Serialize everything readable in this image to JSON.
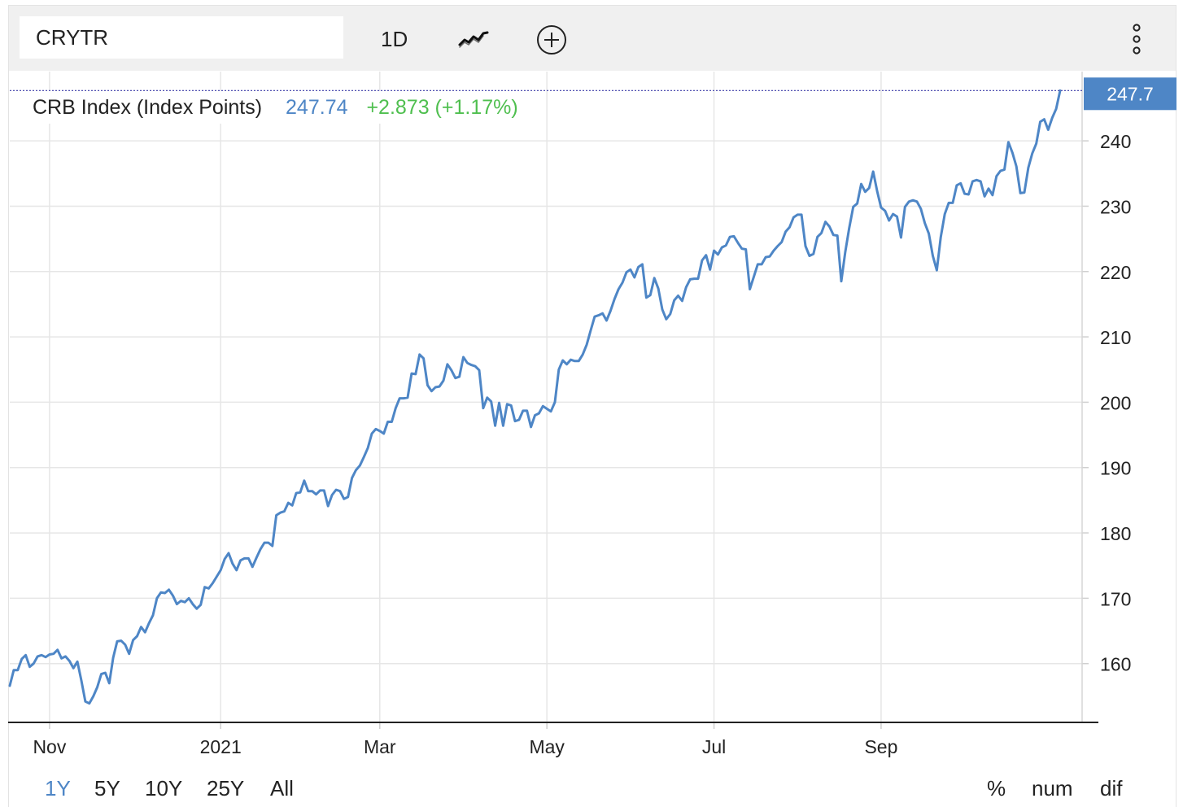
{
  "toolbar": {
    "symbol": "CRYTR",
    "interval_label": "1D",
    "chart_type_icon": "line-chart-icon",
    "add_icon": "plus-circle-icon",
    "more_icon": "vertical-ellipsis-icon"
  },
  "legend": {
    "name": "CRB Index (Index Points)",
    "last": "247.74",
    "change": "+2.873 (+1.17%)"
  },
  "last_price_label": "247.7",
  "colors": {
    "line": "#4e86c6",
    "positive": "#4fbf4f",
    "price_tag": "#4e86c6",
    "toolbar_bg": "#f0f0f0",
    "grid": "#e6e6e6"
  },
  "ranges": [
    "1Y",
    "5Y",
    "10Y",
    "25Y",
    "All"
  ],
  "active_range": "1Y",
  "modes": [
    "%",
    "num",
    "dif"
  ],
  "chart_data": {
    "type": "line",
    "title": "",
    "xlabel": "",
    "ylabel": "",
    "x_unit": "trading day index (0 = first session shown, ~late Oct 2020)",
    "ylim": [
      151,
      250.6
    ],
    "yticks": [
      160,
      170,
      180,
      190,
      200,
      210,
      220,
      230,
      240
    ],
    "xtick_labels": [
      {
        "label": "Nov",
        "x": 10
      },
      {
        "label": "2021",
        "x": 53
      },
      {
        "label": "Mar",
        "x": 93
      },
      {
        "label": "May",
        "x": 135
      },
      {
        "label": "Jul",
        "x": 177
      },
      {
        "label": "Sep",
        "x": 219
      }
    ],
    "grid": true,
    "legend_position": "top-left",
    "series": [
      {
        "name": "CRB Index (Index Points)",
        "values": [
          156.6,
          159,
          159,
          160.7,
          161.3,
          159.5,
          160,
          161.1,
          161.3,
          161,
          161.4,
          161.5,
          162.1,
          160.8,
          161.1,
          160.4,
          159.3,
          160.3,
          157.4,
          154.2,
          153.9,
          155,
          156.4,
          158.4,
          158.6,
          157,
          160.9,
          163.4,
          163.5,
          162.9,
          161.5,
          163.6,
          164.2,
          165.6,
          164.8,
          166.2,
          167.4,
          170,
          170.9,
          170.8,
          171.3,
          170.4,
          169.1,
          169.6,
          169.4,
          170,
          169.1,
          168.4,
          169,
          171.7,
          171.5,
          172.3,
          173.3,
          174.3,
          176,
          176.9,
          175.3,
          174.3,
          175.8,
          176.1,
          176.1,
          174.8,
          176.2,
          177.5,
          178.5,
          178.5,
          178,
          182.7,
          183.1,
          183.3,
          184.6,
          184.2,
          186.1,
          186.2,
          188,
          186.4,
          186.4,
          185.9,
          186.5,
          186.5,
          184.1,
          185.8,
          186.6,
          186.4,
          185.2,
          185.5,
          188.4,
          189.6,
          190.3,
          191.6,
          193,
          195.2,
          195.9,
          195.6,
          195.2,
          197,
          197,
          199.1,
          200.6,
          200.6,
          200.7,
          204.4,
          204.3,
          207.3,
          206.7,
          202.6,
          201.7,
          202.3,
          202.4,
          203.3,
          205.8,
          204.9,
          203.7,
          203.9,
          206.9,
          206,
          205.7,
          205.5,
          204.9,
          199.1,
          200.7,
          200.1,
          196.4,
          199.9,
          196.4,
          199.7,
          199.5,
          197.1,
          197.3,
          198.7,
          198.7,
          196.2,
          198,
          198.3,
          199.4,
          199,
          198.6,
          200,
          205,
          206.4,
          205.8,
          206.5,
          206.3,
          206.3,
          207.3,
          208.8,
          211,
          213.1,
          213.3,
          213.6,
          212.5,
          214,
          215.8,
          217.3,
          218.3,
          219.9,
          220.3,
          219.1,
          220.7,
          221.1,
          216,
          216.4,
          219,
          217.4,
          214.2,
          212.7,
          213.5,
          215.6,
          216.3,
          215.5,
          217.6,
          218.8,
          218.9,
          218.9,
          221.7,
          222.5,
          220.3,
          223.2,
          222.6,
          223.7,
          224,
          225.3,
          225.4,
          224.4,
          223.5,
          223.4,
          217.3,
          219.2,
          221.1,
          221.1,
          222.2,
          222.3,
          223.2,
          223.9,
          224.5,
          226.1,
          226.8,
          228.3,
          228.7,
          228.7,
          223.9,
          222.4,
          222.7,
          225.3,
          225.9,
          227.6,
          226.9,
          225.6,
          225.5,
          218.5,
          223,
          226.7,
          229.9,
          230.4,
          233.4,
          232.2,
          232.8,
          235.3,
          232.3,
          229.8,
          229.3,
          227.8,
          228.8,
          228.4,
          225.2,
          229.9,
          230.7,
          230.9,
          230.7,
          229.6,
          227.4,
          225.8,
          222.4,
          220.2,
          225.3,
          228.8,
          230.5,
          230.5,
          233.2,
          233.5,
          231.9,
          231.8,
          233.8,
          234,
          233.8,
          231.5,
          232.7,
          231.7,
          234.6,
          235.4,
          235.6,
          239.8,
          238.2,
          236.1,
          232,
          232.1,
          235.9,
          238.1,
          239.6,
          242.9,
          243.3,
          241.7,
          243.5,
          244.9,
          247.7
        ]
      }
    ]
  }
}
